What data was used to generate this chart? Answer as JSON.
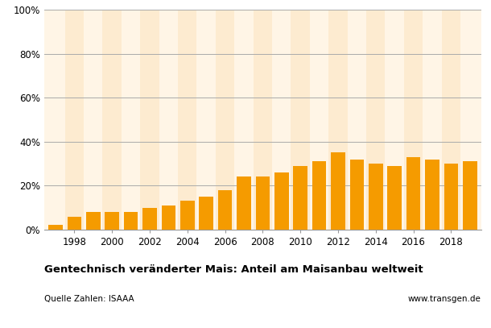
{
  "years": [
    1997,
    1998,
    1999,
    2000,
    2001,
    2002,
    2003,
    2004,
    2005,
    2006,
    2007,
    2008,
    2009,
    2010,
    2011,
    2012,
    2013,
    2014,
    2015,
    2016,
    2017,
    2018,
    2019
  ],
  "values": [
    0.02,
    0.06,
    0.08,
    0.08,
    0.08,
    0.1,
    0.11,
    0.13,
    0.15,
    0.18,
    0.24,
    0.24,
    0.26,
    0.29,
    0.31,
    0.35,
    0.32,
    0.3,
    0.29,
    0.33,
    0.32,
    0.3,
    0.31
  ],
  "bar_color": "#F59B00",
  "bg_color": "#FFFFFF",
  "stripe_color_light": "#FFF5E6",
  "stripe_color_dark": "#FDEBD0",
  "grid_color": "#AAAAAA",
  "title": "Gentechnisch veränderter Mais: Anteil am Maisanbau weltweit",
  "source_left": "Quelle Zahlen: ISAAA",
  "source_right": "www.transgen.de",
  "ylim": [
    0,
    1.0
  ],
  "yticks": [
    0,
    0.2,
    0.4,
    0.6,
    0.8,
    1.0
  ],
  "ytick_labels": [
    "0%",
    "20%",
    "40%",
    "60%",
    "80%",
    "100%"
  ],
  "xtick_years": [
    1998,
    2000,
    2002,
    2004,
    2006,
    2008,
    2010,
    2012,
    2014,
    2016,
    2018
  ]
}
